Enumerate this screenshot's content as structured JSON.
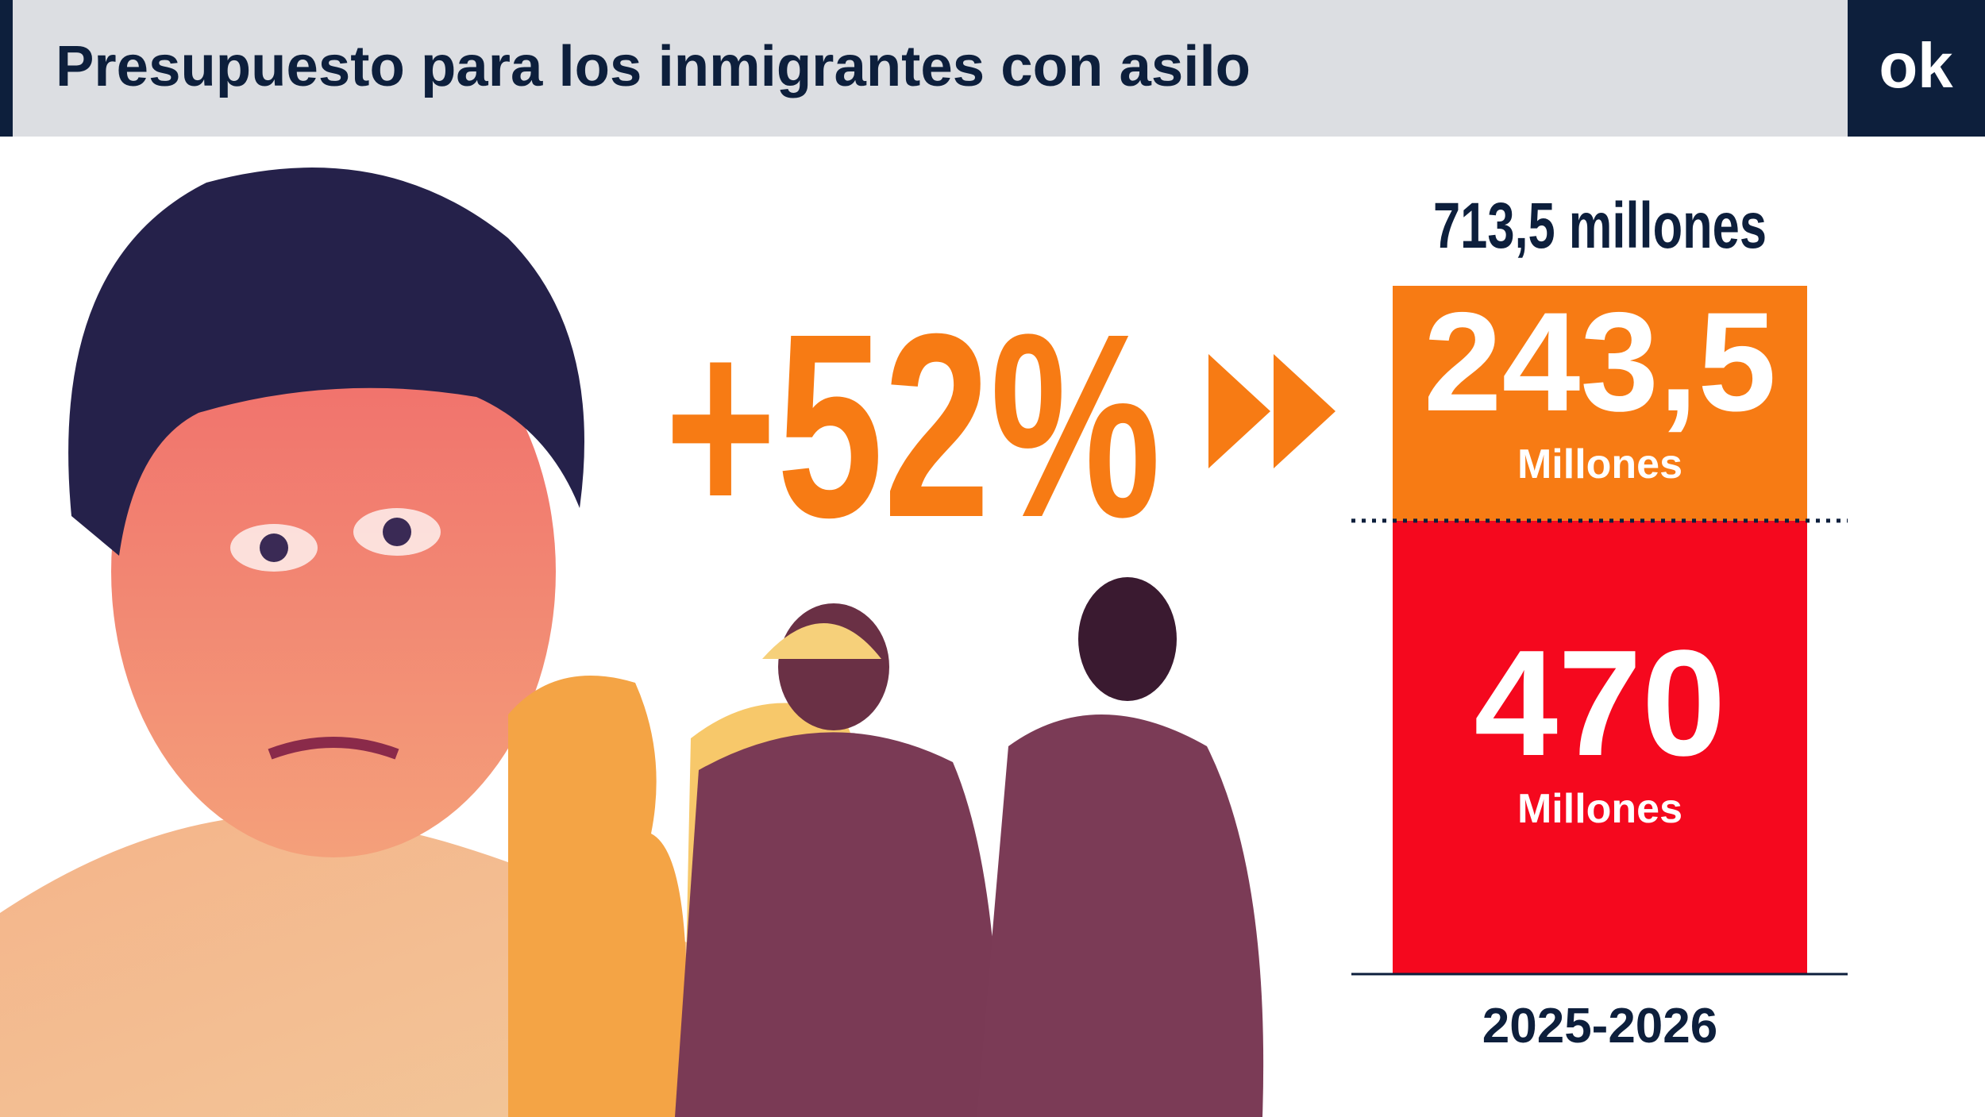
{
  "chart_data": {
    "type": "stacked-bar",
    "title": "Presupuesto para los inmigrantes con asilo",
    "logo": "ok",
    "change_label": "+52%",
    "total_label": "713,5 millones",
    "unit_label": "Millones",
    "categories": [
      "2025-2026"
    ],
    "series": [
      {
        "color": "#f5081e",
        "values": [
          470
        ],
        "value_labels": [
          "470"
        ]
      },
      {
        "color": "#f77b14",
        "values": [
          243.5
        ],
        "value_labels": [
          "243,5"
        ]
      }
    ]
  }
}
